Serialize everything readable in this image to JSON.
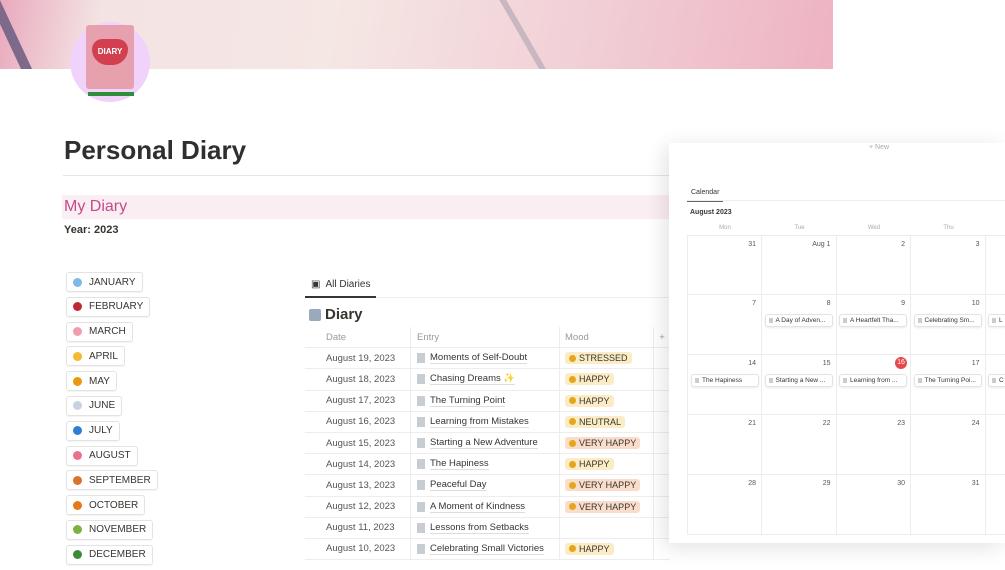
{
  "page": {
    "title": "Personal Diary",
    "callout": "My Diary",
    "year": "Year: 2023",
    "logo_text": "DIARY"
  },
  "months": [
    {
      "label": "JANUARY",
      "icon": "snowflake-icon",
      "color": "#7fb8e6"
    },
    {
      "label": "FEBRUARY",
      "icon": "rose-icon",
      "color": "#c0283a"
    },
    {
      "label": "MARCH",
      "icon": "blossom-icon",
      "color": "#f19cb1"
    },
    {
      "label": "APRIL",
      "icon": "sun-icon",
      "color": "#f5b82e"
    },
    {
      "label": "MAY",
      "icon": "sunflower-icon",
      "color": "#e69a13"
    },
    {
      "label": "JUNE",
      "icon": "cloud-icon",
      "color": "#c7d3df"
    },
    {
      "label": "JULY",
      "icon": "wave-icon",
      "color": "#2f7fd0"
    },
    {
      "label": "AUGUST",
      "icon": "tulip-icon",
      "color": "#e9728d"
    },
    {
      "label": "SEPTEMBER",
      "icon": "leaves-icon",
      "color": "#d9722d"
    },
    {
      "label": "OCTOBER",
      "icon": "pumpkin-icon",
      "color": "#e8771c"
    },
    {
      "label": "NOVEMBER",
      "icon": "leaf-icon",
      "color": "#7bb240"
    },
    {
      "label": "DECEMBER",
      "icon": "tree-icon",
      "color": "#3f8a3a"
    }
  ],
  "diary": {
    "tab": "All Diaries",
    "title": "Diary",
    "columns": [
      "Date",
      "Entry",
      "Mood"
    ],
    "rows": [
      {
        "date": "August 19, 2023",
        "entry": "Moments of Self-Doubt",
        "mood": "STRESSED"
      },
      {
        "date": "August 18, 2023",
        "entry": "Chasing Dreams ✨",
        "mood": "HAPPY"
      },
      {
        "date": "August 17, 2023",
        "entry": "The Turning Point",
        "mood": "HAPPY"
      },
      {
        "date": "August 16, 2023",
        "entry": "Learning from Mistakes",
        "mood": "NEUTRAL"
      },
      {
        "date": "August 15, 2023",
        "entry": "Starting a New Adventure",
        "mood": "VERY HAPPY"
      },
      {
        "date": "August 14, 2023",
        "entry": "The Hapiness",
        "mood": "HAPPY"
      },
      {
        "date": "August 13, 2023",
        "entry": "Peaceful Day",
        "mood": "VERY HAPPY"
      },
      {
        "date": "August 12, 2023",
        "entry": "A Moment of Kindness",
        "mood": "VERY HAPPY"
      },
      {
        "date": "August 11, 2023",
        "entry": "Lessons from Setbacks",
        "mood": ""
      },
      {
        "date": "August 10, 2023",
        "entry": "Celebrating Small Victories",
        "mood": "HAPPY"
      }
    ],
    "mood_colors": {
      "STRESSED": "#fbecc6",
      "HAPPY": "#fbecc6",
      "NEUTRAL": "#fbecc6",
      "VERY HAPPY": "#fadccb"
    }
  },
  "calendar": {
    "new_label": "+ New",
    "tab": "Calendar",
    "month": "August 2023",
    "days": [
      "Mon",
      "Tue",
      "Wed",
      "Thu"
    ],
    "weeks": [
      [
        {
          "n": "31"
        },
        {
          "n": "Aug 1"
        },
        {
          "n": "2"
        },
        {
          "n": "3"
        },
        {
          "n": ""
        }
      ],
      [
        {
          "n": "7"
        },
        {
          "n": "8",
          "ev": "A Day of Adven..."
        },
        {
          "n": "9",
          "ev": "A Heartfelt Tha..."
        },
        {
          "n": "10",
          "ev": "Celebrating Sm..."
        },
        {
          "n": "",
          "ev": "L"
        }
      ],
      [
        {
          "n": "14",
          "ev": "The Hapiness"
        },
        {
          "n": "15",
          "ev": "Starting a New ..."
        },
        {
          "n": "16",
          "ev": "Learning from ...",
          "today": true
        },
        {
          "n": "17",
          "ev": "The Turning Poi..."
        },
        {
          "n": "",
          "ev": "C"
        }
      ],
      [
        {
          "n": "21"
        },
        {
          "n": "22"
        },
        {
          "n": "23"
        },
        {
          "n": "24"
        },
        {
          "n": ""
        }
      ],
      [
        {
          "n": "28"
        },
        {
          "n": "29"
        },
        {
          "n": "30"
        },
        {
          "n": "31"
        },
        {
          "n": ""
        }
      ]
    ]
  }
}
